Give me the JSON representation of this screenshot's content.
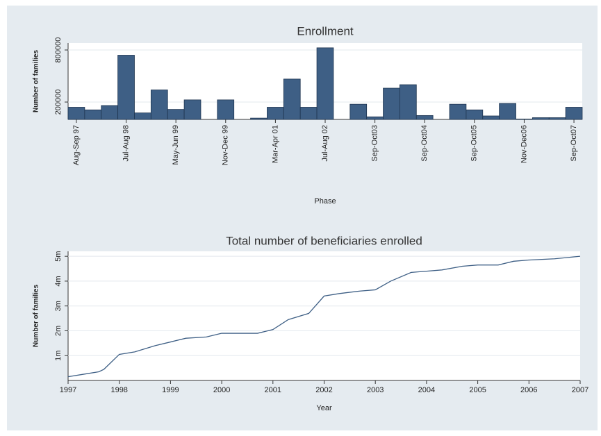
{
  "chart_data": [
    {
      "type": "bar",
      "title": "Enrollment",
      "y_label": "Number of families",
      "x_label": "Phase",
      "categories": [
        "Aug-Sep 97",
        null,
        null,
        "Jul-Aug 98",
        null,
        null,
        "May-Jun 99",
        null,
        null,
        "Nov-Dec 99",
        null,
        null,
        "Mar-Apr 01",
        null,
        null,
        "Jul-Aug 02",
        null,
        null,
        "Sep-Oct03",
        null,
        null,
        "Sep-Oct04",
        null,
        null,
        "Sep-Oct05",
        null,
        null,
        "Nov-Dec06",
        null,
        null,
        "Sep-Oct07"
      ],
      "values": [
        140000,
        110000,
        160000,
        740000,
        75000,
        340000,
        115000,
        225000,
        0,
        225000,
        0,
        15000,
        140000,
        465000,
        140000,
        825000,
        0,
        175000,
        30000,
        360000,
        400000,
        45000,
        0,
        175000,
        110000,
        40000,
        185000,
        5000,
        20000,
        20000,
        140000
      ],
      "color": "#3e5f85",
      "ylim": [
        0,
        880000
      ],
      "yticks": [
        200000,
        800000
      ],
      "grid": true
    },
    {
      "type": "line",
      "title": "Total number of beneficiaries enrolled",
      "y_label": "Number of families",
      "x_label": "Year",
      "x": [
        1997.0,
        1997.3,
        1997.6,
        1997.7,
        1998.0,
        1998.3,
        1998.7,
        1999.0,
        1999.3,
        1999.7,
        2000.0,
        2000.7,
        2001.0,
        2001.3,
        2001.7,
        2002.0,
        2002.3,
        2002.7,
        2003.0,
        2003.3,
        2003.7,
        2004.0,
        2004.3,
        2004.7,
        2005.0,
        2005.4,
        2005.7,
        2006.0,
        2006.5,
        2007.0
      ],
      "values": [
        150000,
        250000,
        350000,
        450000,
        1050000,
        1150000,
        1400000,
        1550000,
        1700000,
        1750000,
        1900000,
        1900000,
        2050000,
        2450000,
        2700000,
        3400000,
        3500000,
        3600000,
        3650000,
        4000000,
        4350000,
        4400000,
        4450000,
        4600000,
        4650000,
        4650000,
        4800000,
        4850000,
        4900000,
        5000000
      ],
      "color": "#3e5f85",
      "xlim": [
        1997,
        2007
      ],
      "xticks": [
        1997,
        1998,
        1999,
        2000,
        2001,
        2002,
        2003,
        2004,
        2005,
        2006,
        2007
      ],
      "ylim": [
        0,
        5200000
      ],
      "yticks": [
        {
          "value": 1000000,
          "label": "1m"
        },
        {
          "value": 2000000,
          "label": "2m"
        },
        {
          "value": 3000000,
          "label": "3m"
        },
        {
          "value": 4000000,
          "label": "4m"
        },
        {
          "value": 5000000,
          "label": "5m"
        }
      ],
      "grid": true
    }
  ]
}
